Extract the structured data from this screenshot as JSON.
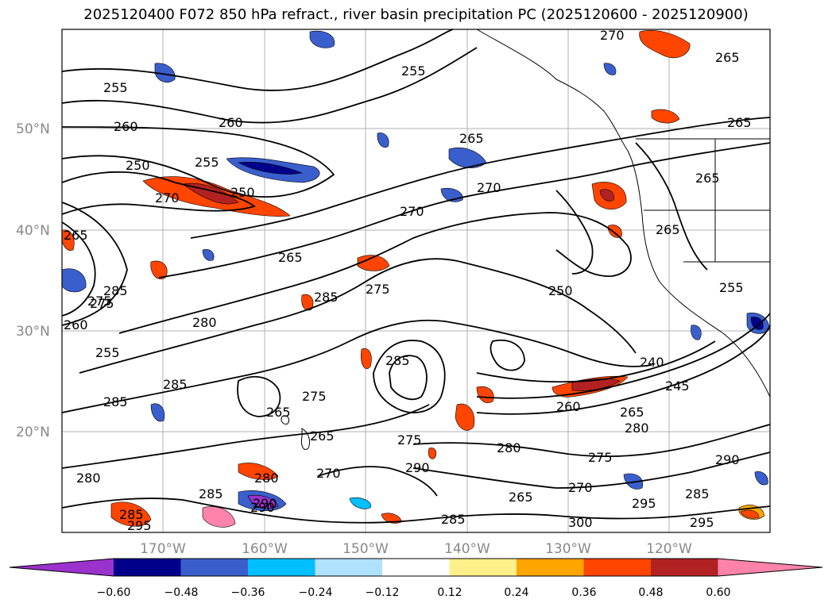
{
  "title": "2025120400 F072 850 hPa refract., river basin precipitation PC (2025120600 - 2025120900)",
  "latitude_labels": [
    "50°N",
    "40°N",
    "30°N",
    "20°N"
  ],
  "longitude_labels": [
    "170°W",
    "160°W",
    "150°W",
    "140°W",
    "130°W",
    "120°W"
  ],
  "colorbar": {
    "colors": [
      "#9a32cd",
      "#00008b",
      "#3a5fcd",
      "#00bfff",
      "#b0e2ff",
      "#ffffff",
      "#fff08b",
      "#ffa500",
      "#ff4500",
      "#b22222",
      "#ff83aa"
    ],
    "tick_labels": [
      "−0.60",
      "−0.48",
      "−0.36",
      "−0.24",
      "−0.12",
      "0.12",
      "0.24",
      "0.36",
      "0.48",
      "0.60"
    ]
  },
  "contour_labels": [
    "255",
    "260",
    "260",
    "250",
    "255",
    "250",
    "270",
    "265",
    "285",
    "275",
    "260",
    "255",
    "280",
    "285",
    "285",
    "275",
    "265",
    "255",
    "265",
    "265",
    "270",
    "270",
    "265",
    "275",
    "285",
    "265",
    "285",
    "265",
    "275",
    "290",
    "300",
    "285",
    "270",
    "280",
    "285",
    "280",
    "275",
    "270",
    "265",
    "260",
    "250",
    "240",
    "245",
    "280",
    "290",
    "285",
    "295",
    "265",
    "265",
    "265",
    "255",
    "295",
    "280",
    "290",
    "295",
    "275",
    "285",
    "290",
    "270"
  ]
}
